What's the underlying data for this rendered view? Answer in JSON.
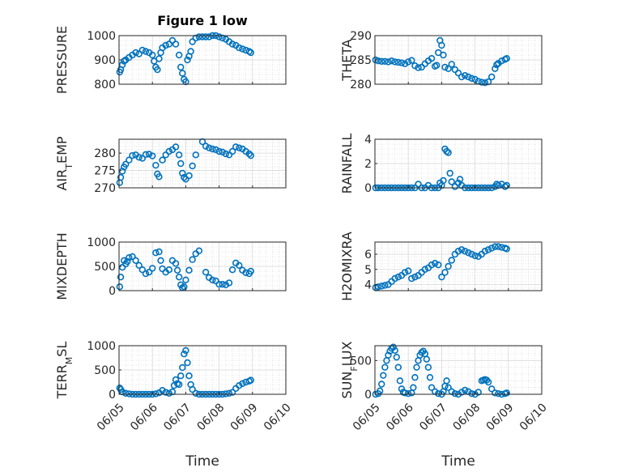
{
  "chart_data": [
    {
      "type": "scatter",
      "title": "Figure 1 low",
      "ylabel": "PRESSURE",
      "ylim": [
        800,
        1000
      ],
      "yticks": [
        800,
        900,
        1000
      ],
      "ytick_labels": [
        "800",
        "900",
        "1000"
      ],
      "xlim": [
        0,
        5
      ],
      "grid": true,
      "x": [
        0.02,
        0.05,
        0.1,
        0.15,
        0.2,
        0.3,
        0.4,
        0.5,
        0.6,
        0.7,
        0.8,
        0.9,
        1.0,
        1.05,
        1.1,
        1.15,
        1.2,
        1.25,
        1.3,
        1.4,
        1.5,
        1.6,
        1.7,
        1.8,
        1.85,
        1.9,
        1.95,
        2.0,
        2.05,
        2.1,
        2.15,
        2.2,
        2.3,
        2.4,
        2.5,
        2.6,
        2.7,
        2.8,
        2.9,
        3.0,
        3.1,
        3.2,
        3.3,
        3.4,
        3.5,
        3.6,
        3.7,
        3.8,
        3.9,
        3.95
      ],
      "y": [
        850,
        860,
        880,
        895,
        900,
        910,
        920,
        930,
        925,
        940,
        935,
        930,
        920,
        895,
        870,
        860,
        905,
        930,
        950,
        960,
        965,
        980,
        965,
        920,
        870,
        845,
        820,
        810,
        900,
        915,
        935,
        975,
        990,
        995,
        995,
        995,
        995,
        1000,
        1000,
        995,
        990,
        985,
        975,
        965,
        960,
        950,
        945,
        940,
        935,
        930
      ]
    },
    {
      "type": "scatter",
      "ylabel": "THETA",
      "ylim": [
        280,
        290
      ],
      "yticks": [
        280,
        285,
        290
      ],
      "ytick_labels": [
        "280",
        "285",
        "290"
      ],
      "xlim": [
        0,
        5
      ],
      "grid": true,
      "x": [
        0.02,
        0.1,
        0.2,
        0.3,
        0.4,
        0.5,
        0.6,
        0.7,
        0.8,
        0.9,
        1.0,
        1.1,
        1.2,
        1.3,
        1.4,
        1.5,
        1.6,
        1.7,
        1.8,
        1.85,
        1.9,
        1.95,
        2.0,
        2.05,
        2.1,
        2.2,
        2.3,
        2.4,
        2.5,
        2.6,
        2.7,
        2.8,
        2.9,
        3.0,
        3.1,
        3.2,
        3.3,
        3.4,
        3.5,
        3.6,
        3.65,
        3.7,
        3.8,
        3.9,
        3.95
      ],
      "y": [
        285,
        284.8,
        284.7,
        284.7,
        284.6,
        284.8,
        284.6,
        284.5,
        284.4,
        284.2,
        284.6,
        284.9,
        283.8,
        283.4,
        283.5,
        284.2,
        284.8,
        285.3,
        283.7,
        283.9,
        286.5,
        289,
        288,
        286,
        283.5,
        283.2,
        284.1,
        283,
        282.3,
        281.5,
        281.8,
        281.5,
        281.2,
        281,
        280.6,
        280.4,
        280.3,
        280.5,
        281.5,
        283.2,
        284,
        284.3,
        284.8,
        285.1,
        285.3
      ]
    },
    {
      "type": "scatter",
      "ylabel": "AIR_TEMP",
      "ylim": [
        270,
        284
      ],
      "yticks": [
        270,
        275,
        280
      ],
      "ytick_labels": [
        "270",
        "275",
        "280"
      ],
      "xlim": [
        0,
        5
      ],
      "grid": true,
      "x": [
        0.02,
        0.05,
        0.1,
        0.15,
        0.2,
        0.3,
        0.4,
        0.5,
        0.6,
        0.7,
        0.8,
        0.9,
        1.0,
        1.1,
        1.15,
        1.2,
        1.3,
        1.4,
        1.5,
        1.6,
        1.7,
        1.8,
        1.85,
        1.9,
        1.95,
        2.0,
        2.1,
        2.2,
        2.3,
        2.5,
        2.6,
        2.7,
        2.8,
        2.9,
        3.0,
        3.1,
        3.2,
        3.3,
        3.4,
        3.5,
        3.6,
        3.7,
        3.8,
        3.9,
        3.95
      ],
      "y": [
        271.5,
        273,
        274.8,
        276,
        276.8,
        278,
        279.3,
        279.5,
        278.8,
        278.5,
        279.6,
        279.7,
        279.2,
        276.5,
        274,
        273.2,
        278,
        279.5,
        280.5,
        281,
        281.8,
        279.5,
        277,
        274.2,
        273,
        272.5,
        273.5,
        276.3,
        279.5,
        283.3,
        282,
        281.5,
        281.2,
        281,
        280.5,
        280.3,
        279.8,
        279.5,
        280.5,
        281.8,
        281.5,
        281.2,
        280.5,
        279.8,
        279.3
      ]
    },
    {
      "type": "scatter",
      "ylabel": "RAINFALL",
      "ylim": [
        0,
        4
      ],
      "yticks": [
        0,
        2,
        4
      ],
      "ytick_labels": [
        "0",
        "2",
        "4"
      ],
      "xlim": [
        0,
        5
      ],
      "grid": true,
      "x": [
        0.02,
        0.1,
        0.2,
        0.3,
        0.4,
        0.5,
        0.6,
        0.7,
        0.8,
        0.9,
        1.0,
        1.1,
        1.2,
        1.3,
        1.4,
        1.5,
        1.6,
        1.7,
        1.8,
        1.9,
        1.95,
        2.0,
        2.05,
        2.1,
        2.15,
        2.2,
        2.25,
        2.3,
        2.4,
        2.5,
        2.55,
        2.6,
        2.7,
        2.8,
        2.9,
        3.0,
        3.1,
        3.2,
        3.3,
        3.4,
        3.5,
        3.6,
        3.65,
        3.7,
        3.8,
        3.9,
        3.95
      ],
      "y": [
        0,
        0,
        0,
        0,
        0,
        0,
        0,
        0,
        0,
        0,
        0,
        0,
        0,
        0.3,
        0,
        0,
        0.2,
        0,
        0,
        0,
        0.4,
        0.2,
        0.6,
        3.2,
        3.0,
        2.9,
        1.2,
        0.5,
        0.1,
        0.4,
        0.7,
        0.2,
        0,
        0,
        0,
        0,
        0,
        0,
        0,
        0,
        0,
        0.1,
        0.3,
        0.2,
        0.3,
        0.1,
        0.2
      ]
    },
    {
      "type": "scatter",
      "ylabel": "MIXDEPTH",
      "ylim": [
        0,
        1000
      ],
      "yticks": [
        0,
        500,
        1000
      ],
      "ytick_labels": [
        "0",
        "500",
        "1000"
      ],
      "xlim": [
        0,
        5
      ],
      "grid": true,
      "x": [
        0.02,
        0.05,
        0.1,
        0.15,
        0.2,
        0.25,
        0.3,
        0.4,
        0.5,
        0.6,
        0.7,
        0.8,
        0.9,
        1.0,
        1.1,
        1.2,
        1.25,
        1.3,
        1.4,
        1.5,
        1.6,
        1.7,
        1.75,
        1.8,
        1.85,
        1.9,
        1.95,
        2.0,
        2.1,
        2.2,
        2.3,
        2.4,
        2.6,
        2.7,
        2.8,
        2.9,
        3.0,
        3.1,
        3.2,
        3.3,
        3.4,
        3.5,
        3.6,
        3.7,
        3.8,
        3.9,
        3.95
      ],
      "y": [
        80,
        280,
        480,
        620,
        550,
        600,
        680,
        700,
        620,
        520,
        430,
        350,
        380,
        460,
        780,
        800,
        620,
        450,
        380,
        430,
        620,
        560,
        420,
        280,
        120,
        60,
        80,
        220,
        420,
        640,
        760,
        820,
        380,
        270,
        220,
        200,
        130,
        130,
        120,
        160,
        430,
        570,
        520,
        420,
        370,
        350,
        400
      ]
    },
    {
      "type": "scatter",
      "ylabel": "H2OMIXRA",
      "ylim": [
        3.6,
        6.8
      ],
      "yticks": [
        4,
        5,
        6
      ],
      "ytick_labels": [
        "4",
        "5",
        "6"
      ],
      "xlim": [
        0,
        5
      ],
      "grid": true,
      "x": [
        0.02,
        0.1,
        0.2,
        0.3,
        0.4,
        0.5,
        0.6,
        0.7,
        0.8,
        0.9,
        1.0,
        1.1,
        1.2,
        1.3,
        1.4,
        1.5,
        1.6,
        1.7,
        1.8,
        1.9,
        2.0,
        2.1,
        2.2,
        2.3,
        2.4,
        2.5,
        2.6,
        2.7,
        2.8,
        2.9,
        3.0,
        3.1,
        3.2,
        3.3,
        3.4,
        3.5,
        3.6,
        3.7,
        3.8,
        3.9,
        3.95
      ],
      "y": [
        3.8,
        3.85,
        3.9,
        3.95,
        4.0,
        4.2,
        4.4,
        4.5,
        4.6,
        4.8,
        4.9,
        4.4,
        4.5,
        4.6,
        4.8,
        5.0,
        5.1,
        5.3,
        5.4,
        5.3,
        4.5,
        4.8,
        5.2,
        5.6,
        6.0,
        6.2,
        6.3,
        6.2,
        6.1,
        6.0,
        5.9,
        5.85,
        6.0,
        6.2,
        6.3,
        6.4,
        6.5,
        6.5,
        6.45,
        6.4,
        6.35
      ]
    },
    {
      "type": "scatter",
      "ylabel": "TERR_MSL",
      "ylim": [
        0,
        1000
      ],
      "yticks": [
        0,
        500,
        1000
      ],
      "ytick_labels": [
        "0",
        "500",
        "1000"
      ],
      "xlim": [
        0,
        5
      ],
      "xticks": [
        0,
        1,
        2,
        3,
        4,
        5
      ],
      "xtick_labels": [
        "06/05",
        "06/06",
        "06/07",
        "06/08",
        "06/09",
        "06/10"
      ],
      "xlabel": "Time",
      "grid": true,
      "x": [
        0.02,
        0.05,
        0.1,
        0.2,
        0.3,
        0.4,
        0.5,
        0.6,
        0.7,
        0.8,
        0.9,
        1.0,
        1.1,
        1.2,
        1.3,
        1.4,
        1.5,
        1.6,
        1.65,
        1.7,
        1.75,
        1.8,
        1.85,
        1.9,
        1.95,
        2.0,
        2.05,
        2.1,
        2.15,
        2.2,
        2.3,
        2.4,
        2.5,
        2.6,
        2.7,
        2.8,
        2.9,
        3.0,
        3.1,
        3.2,
        3.3,
        3.4,
        3.5,
        3.6,
        3.7,
        3.8,
        3.9,
        3.95
      ],
      "y": [
        130,
        100,
        50,
        20,
        10,
        0,
        0,
        0,
        0,
        0,
        0,
        0,
        10,
        30,
        80,
        40,
        20,
        50,
        180,
        300,
        220,
        200,
        380,
        550,
        830,
        900,
        650,
        380,
        200,
        100,
        20,
        0,
        0,
        0,
        0,
        0,
        0,
        0,
        0,
        10,
        20,
        40,
        120,
        180,
        220,
        250,
        270,
        290
      ]
    },
    {
      "type": "scatter",
      "ylabel": "SUN_FLUX",
      "ylim": [
        0,
        720
      ],
      "yticks": [
        0,
        500
      ],
      "ytick_labels": [
        "0",
        "500"
      ],
      "xlim": [
        0,
        5
      ],
      "xticks": [
        0,
        1,
        2,
        3,
        4,
        5
      ],
      "xtick_labels": [
        "06/05",
        "06/06",
        "06/07",
        "06/08",
        "06/09",
        "06/10"
      ],
      "xlabel": "Time",
      "grid": true,
      "x": [
        0.02,
        0.1,
        0.15,
        0.2,
        0.25,
        0.3,
        0.35,
        0.4,
        0.45,
        0.5,
        0.55,
        0.6,
        0.65,
        0.7,
        0.75,
        0.8,
        0.85,
        0.9,
        1.0,
        1.1,
        1.15,
        1.2,
        1.25,
        1.3,
        1.35,
        1.4,
        1.45,
        1.5,
        1.55,
        1.6,
        1.65,
        1.7,
        1.8,
        1.9,
        2.0,
        2.05,
        2.1,
        2.15,
        2.2,
        2.3,
        2.4,
        2.5,
        2.6,
        2.7,
        2.8,
        2.9,
        3.0,
        3.1,
        3.2,
        3.25,
        3.3,
        3.35,
        3.4,
        3.5,
        3.6,
        3.7,
        3.8,
        3.9,
        3.95
      ],
      "y": [
        0,
        10,
        50,
        150,
        280,
        400,
        500,
        580,
        640,
        680,
        700,
        650,
        550,
        400,
        200,
        80,
        30,
        20,
        10,
        20,
        100,
        250,
        400,
        500,
        580,
        620,
        640,
        600,
        520,
        400,
        250,
        100,
        40,
        10,
        0,
        40,
        120,
        200,
        100,
        40,
        10,
        0,
        30,
        60,
        40,
        10,
        0,
        30,
        200,
        210,
        220,
        210,
        180,
        80,
        20,
        10,
        0,
        10,
        20
      ]
    }
  ]
}
